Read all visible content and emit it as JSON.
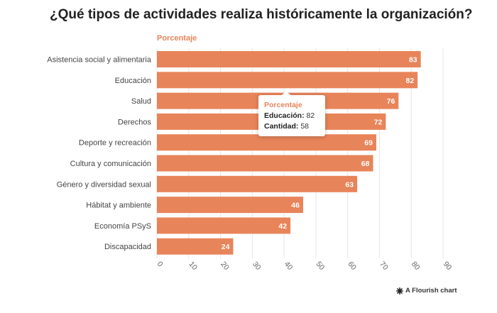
{
  "title": "¿Qué tipos de actividades realiza históricamente la organización?",
  "legend": "Porcentaje",
  "chart_data": {
    "type": "bar",
    "orientation": "horizontal",
    "categories": [
      "Asistencia social y alimentaria",
      "Educación",
      "Salud",
      "Derechos",
      "Deporte y recreación",
      "Cultura y comunicación",
      "Género y diversidad sexual",
      "Hábitat y ambiente",
      "Economía PSyS",
      "Discapacidad"
    ],
    "series": [
      {
        "name": "Porcentaje",
        "values": [
          83,
          82,
          76,
          72,
          69,
          68,
          63,
          46,
          42,
          24
        ]
      }
    ],
    "xlim": [
      0,
      90
    ],
    "xticks": [
      "0",
      "10",
      "20",
      "30",
      "40",
      "50",
      "60",
      "70",
      "80",
      "90"
    ],
    "grid": true,
    "bar_color": "#e8845a"
  },
  "tooltip": {
    "title": "Porcentaje",
    "line1_key": "Educación:",
    "line1_val": "82",
    "line2_key": "Cantidad:",
    "line2_val": "58"
  },
  "credit": "A Flourish chart",
  "credit_icon": "flourish-logo-icon"
}
